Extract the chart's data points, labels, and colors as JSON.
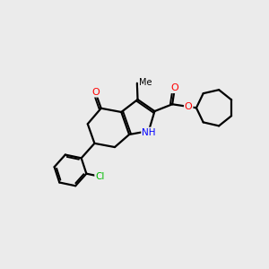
{
  "background_color": "#ebebeb",
  "bond_color": "#000000",
  "bond_width": 1.6,
  "atom_colors": {
    "O": "#ff0000",
    "N": "#0000ff",
    "Cl": "#00bb00",
    "C": "#000000"
  },
  "figsize": [
    3.0,
    3.0
  ],
  "dpi": 100,
  "xlim": [
    0,
    10
  ],
  "ylim": [
    0,
    10
  ]
}
